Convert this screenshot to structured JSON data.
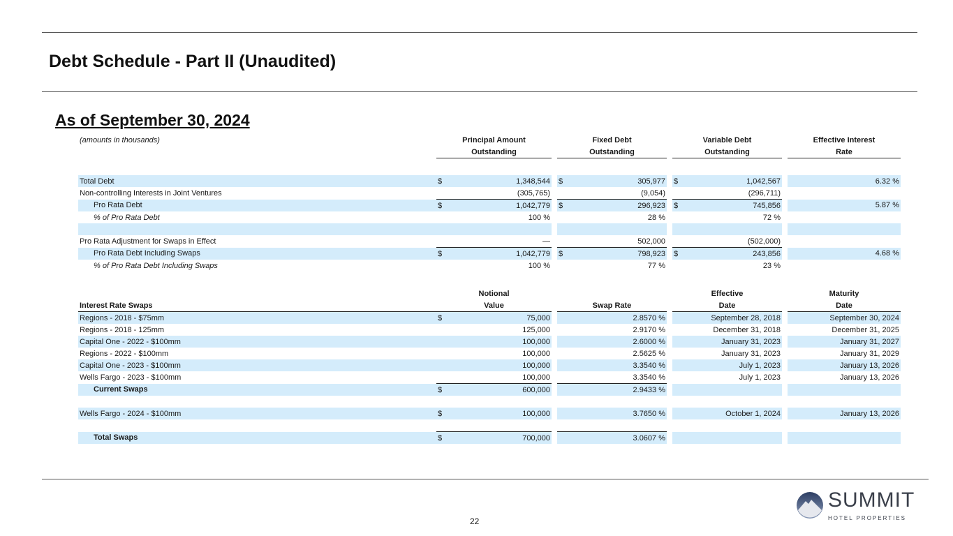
{
  "title": "Debt Schedule - Part II (Unaudited)",
  "subtitle": "As of September 30, 2024",
  "debt": {
    "note": "(amounts in thousands)",
    "headers": [
      [
        "Principal Amount",
        "Outstanding"
      ],
      [
        "Fixed Debt",
        "Outstanding"
      ],
      [
        "Variable Debt",
        "Outstanding"
      ],
      [
        "Effective Interest",
        "Rate"
      ]
    ],
    "rows": [
      {
        "label": "Total Debt",
        "style": "blue",
        "cells": [
          [
            "$",
            "1,348,544"
          ],
          [
            "$",
            "305,977"
          ],
          [
            "$",
            "1,042,567"
          ],
          [
            "",
            "6.32 %"
          ]
        ]
      },
      {
        "label": "Non-controlling Interests in Joint Ventures",
        "style": "",
        "cells": [
          [
            "",
            "(305,765)"
          ],
          [
            "",
            "(9,054)"
          ],
          [
            "",
            "(296,711)"
          ],
          [
            "",
            ""
          ]
        ]
      },
      {
        "label": "Pro Rata Debt",
        "style": "blue ind top",
        "cells": [
          [
            "$",
            "1,042,779"
          ],
          [
            "$",
            "296,923"
          ],
          [
            "$",
            "745,856"
          ],
          [
            "",
            "5.87 %"
          ]
        ]
      },
      {
        "label": "% of Pro Rata Debt",
        "style": "ind it",
        "cells": [
          [
            "",
            "100 %"
          ],
          [
            "",
            "28 %"
          ],
          [
            "",
            "72 %"
          ],
          [
            "",
            ""
          ]
        ]
      },
      {
        "label": "",
        "style": "blue",
        "cells": [
          [
            "",
            ""
          ],
          [
            "",
            ""
          ],
          [
            "",
            ""
          ],
          [
            "",
            ""
          ]
        ]
      },
      {
        "label": "Pro Rata Adjustment for Swaps in Effect",
        "style": "",
        "cells": [
          [
            "",
            "—"
          ],
          [
            "",
            "502,000"
          ],
          [
            "",
            "(502,000)"
          ],
          [
            "",
            ""
          ]
        ]
      },
      {
        "label": "Pro Rata Debt Including Swaps",
        "style": "blue ind top",
        "cells": [
          [
            "$",
            "1,042,779"
          ],
          [
            "$",
            "798,923"
          ],
          [
            "$",
            "243,856"
          ],
          [
            "",
            "4.68 %"
          ]
        ]
      },
      {
        "label": "% of Pro Rata Debt Including Swaps",
        "style": "ind it",
        "cells": [
          [
            "",
            "100 %"
          ],
          [
            "",
            "77 %"
          ],
          [
            "",
            "23 %"
          ],
          [
            "",
            ""
          ]
        ]
      }
    ]
  },
  "swaps": {
    "headers": [
      [
        "",
        "Interest Rate Swaps"
      ],
      [
        "Notional",
        "Value"
      ],
      [
        "",
        "Swap Rate"
      ],
      [
        "Effective",
        "Date"
      ],
      [
        "Maturity",
        "Date"
      ]
    ],
    "rows": [
      {
        "label": "Regions - 2018 - $75mm",
        "style": "blue",
        "cells": [
          [
            "$",
            "75,000"
          ],
          [
            "",
            "2.8570 %"
          ],
          [
            "",
            "September 28, 2018"
          ],
          [
            "",
            "September 30, 2024"
          ]
        ]
      },
      {
        "label": "Regions - 2018 - 125mm",
        "style": "",
        "cells": [
          [
            "",
            "125,000"
          ],
          [
            "",
            "2.9170 %"
          ],
          [
            "",
            "December 31, 2018"
          ],
          [
            "",
            "December 31, 2025"
          ]
        ]
      },
      {
        "label": "Capital One - 2022 - $100mm",
        "style": "blue",
        "cells": [
          [
            "",
            "100,000"
          ],
          [
            "",
            "2.6000 %"
          ],
          [
            "",
            "January 31, 2023"
          ],
          [
            "",
            "January 31, 2027"
          ]
        ]
      },
      {
        "label": "Regions - 2022 - $100mm",
        "style": "",
        "cells": [
          [
            "",
            "100,000"
          ],
          [
            "",
            "2.5625 %"
          ],
          [
            "",
            "January 31, 2023"
          ],
          [
            "",
            "January 31, 2029"
          ]
        ]
      },
      {
        "label": "Capital One - 2023 - $100mm",
        "style": "blue",
        "cells": [
          [
            "",
            "100,000"
          ],
          [
            "",
            "3.3540 %"
          ],
          [
            "",
            "July 1, 2023"
          ],
          [
            "",
            "January 13, 2026"
          ]
        ]
      },
      {
        "label": "Wells Fargo - 2023 - $100mm",
        "style": "",
        "cells": [
          [
            "",
            "100,000"
          ],
          [
            "",
            "3.3540 %"
          ],
          [
            "",
            "July 1, 2023"
          ],
          [
            "",
            "January 13, 2026"
          ]
        ]
      },
      {
        "label": "Current Swaps",
        "style": "blue ind b top2",
        "cells": [
          [
            "$",
            "600,000"
          ],
          [
            "",
            "2.9433 %"
          ],
          [
            "",
            ""
          ],
          [
            "",
            ""
          ]
        ]
      },
      {
        "label": "",
        "style": "",
        "cells": [
          [
            "",
            ""
          ],
          [
            "",
            ""
          ],
          [
            "",
            ""
          ],
          [
            "",
            ""
          ]
        ]
      },
      {
        "label": "Wells Fargo - 2024 - $100mm",
        "style": "blue",
        "cells": [
          [
            "$",
            "100,000"
          ],
          [
            "",
            "3.7650 %"
          ],
          [
            "",
            "October 1, 2024"
          ],
          [
            "",
            "January 13, 2026"
          ]
        ]
      },
      {
        "label": "",
        "style": "",
        "cells": [
          [
            "",
            ""
          ],
          [
            "",
            ""
          ],
          [
            "",
            ""
          ],
          [
            "",
            ""
          ]
        ]
      },
      {
        "label": "Total Swaps",
        "style": "blue ind b top2",
        "cells": [
          [
            "$",
            "700,000"
          ],
          [
            "",
            "3.0607 %"
          ],
          [
            "",
            ""
          ],
          [
            "",
            ""
          ]
        ]
      }
    ]
  },
  "page_number": "22",
  "logo": {
    "name": "SUMMIT",
    "tagline": "HOTEL PROPERTIES"
  }
}
